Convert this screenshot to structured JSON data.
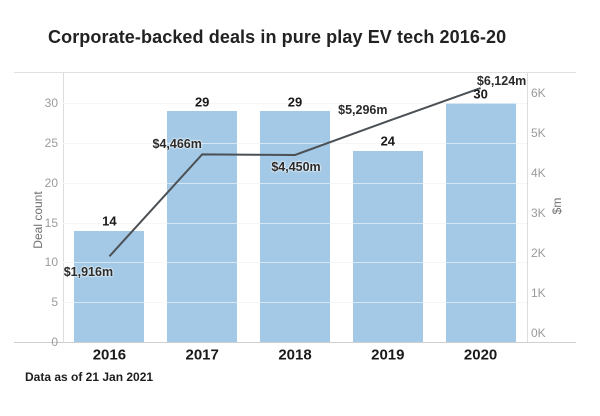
{
  "title": "Corporate-backed deals in pure play EV tech 2016-20",
  "footnote": "Data as of 21 Jan 2021",
  "colors": {
    "bar": "#a3c9e6",
    "line": "#4b5055",
    "title_text": "#222222",
    "value_label": "#1a1a1a",
    "tick_label": "#9b9b9b",
    "axis_title": "#6f6f6f",
    "frame": "#dddddd"
  },
  "chart_data": {
    "type": "bar+line",
    "title": "Corporate-backed deals in pure play EV tech 2016-20",
    "categories": [
      "2016",
      "2017",
      "2018",
      "2019",
      "2020"
    ],
    "series": [
      {
        "name": "Deal count",
        "type": "bar",
        "axis": "left",
        "values": [
          14,
          29,
          29,
          24,
          30
        ],
        "labels": [
          "14",
          "29",
          "29",
          "24",
          "30"
        ]
      },
      {
        "name": "$m",
        "type": "line",
        "axis": "right",
        "values": [
          1916,
          4466,
          4450,
          5296,
          6124
        ],
        "labels": [
          "$1,916m",
          "$4,466m",
          "$4,450m",
          "$5,296m",
          "$6,124m"
        ]
      }
    ],
    "left_axis": {
      "title": "Deal count",
      "min": 0,
      "max": 30,
      "tick_values": [
        0,
        5,
        10,
        15,
        20,
        25,
        30
      ],
      "tick_labels": [
        "0",
        "5",
        "10",
        "15",
        "20",
        "25",
        "30"
      ]
    },
    "right_axis": {
      "title": "$m",
      "min": 0,
      "max": 6000,
      "tick_values": [
        0,
        1000,
        2000,
        3000,
        4000,
        5000,
        6000
      ],
      "tick_labels": [
        "0K",
        "1K",
        "2K",
        "3K",
        "4K",
        "5K",
        "6K"
      ]
    },
    "grid": true,
    "legend": "none",
    "footnote": "Data as of 21 Jan 2021"
  }
}
